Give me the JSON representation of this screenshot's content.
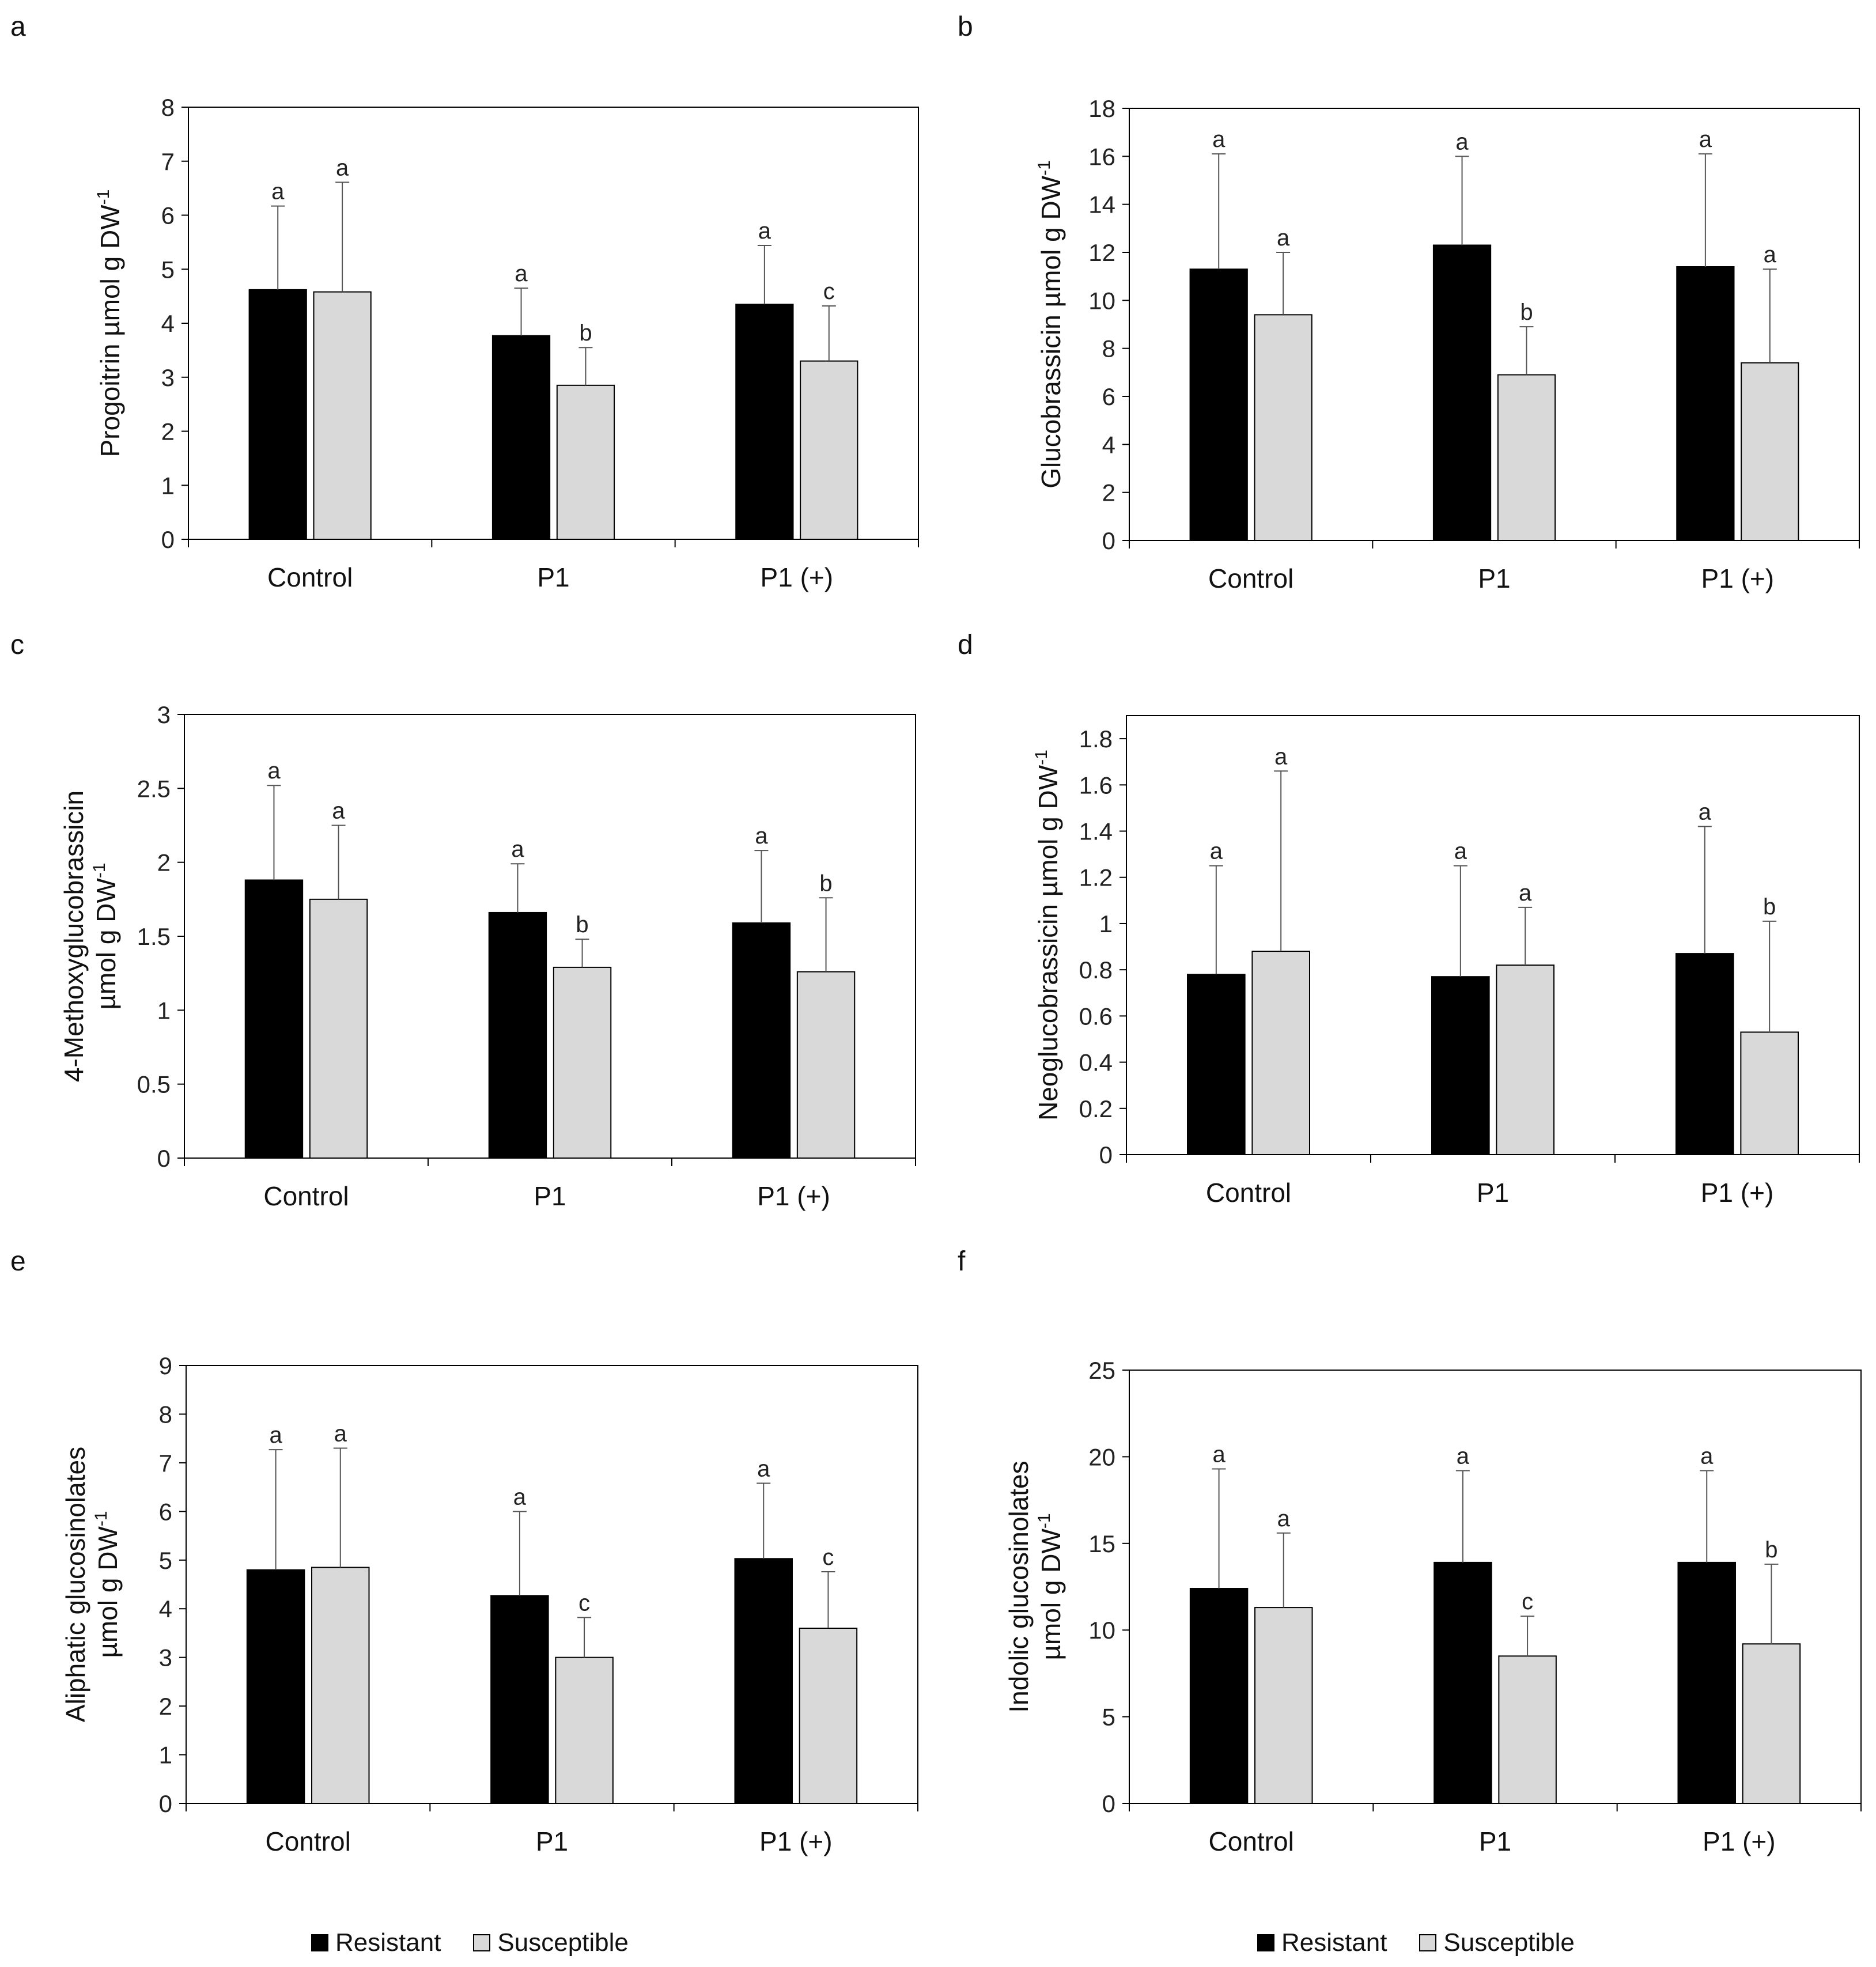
{
  "legend": {
    "resistant": "Resistant",
    "susceptible": "Susceptible"
  },
  "colors": {
    "resistant": "#000000",
    "susceptible": "#d9d9d9",
    "frame": "#000000",
    "errorbar": "#555555"
  },
  "chart_data": [
    {
      "panel_label": "a",
      "type": "bar",
      "ylabel": "Progoitrin µmol g DW",
      "ylabel_sup": "-1",
      "categories": [
        "Control",
        "P1",
        "P1 (+)"
      ],
      "ylim": [
        0,
        8
      ],
      "yticks": [
        "0",
        "1",
        "2",
        "3",
        "4",
        "5",
        "6",
        "7",
        "8"
      ],
      "series": [
        {
          "name": "Resistant",
          "values": [
            4.62,
            3.77,
            4.35
          ],
          "errors": [
            1.55,
            0.88,
            1.09
          ],
          "letters": [
            "a",
            "a",
            "a"
          ]
        },
        {
          "name": "Susceptible",
          "values": [
            4.58,
            2.85,
            3.3
          ],
          "errors": [
            2.03,
            0.7,
            1.02
          ],
          "letters": [
            "a",
            "b",
            "c"
          ]
        }
      ]
    },
    {
      "panel_label": "b",
      "type": "bar",
      "ylabel": "Glucobrassicin µmol g DW",
      "ylabel_sup": "-1",
      "categories": [
        "Control",
        "P1",
        "P1 (+)"
      ],
      "ylim": [
        0,
        18
      ],
      "yticks": [
        "0",
        "2",
        "4",
        "6",
        "8",
        "10",
        "12",
        "14",
        "16",
        "18"
      ],
      "series": [
        {
          "name": "Resistant",
          "values": [
            11.3,
            12.3,
            11.4
          ],
          "errors": [
            4.8,
            3.7,
            4.7
          ],
          "letters": [
            "a",
            "a",
            "a"
          ]
        },
        {
          "name": "Susceptible",
          "values": [
            9.4,
            6.9,
            7.4
          ],
          "errors": [
            2.6,
            2.0,
            3.9
          ],
          "letters": [
            "a",
            "b",
            "a"
          ]
        }
      ]
    },
    {
      "panel_label": "c",
      "type": "bar",
      "ylabel": "4-Methoxyglucobrassicin",
      "ylabel2": "µmol g DW",
      "ylabel_sup": "-1",
      "categories": [
        "Control",
        "P1",
        "P1 (+)"
      ],
      "ylim": [
        0,
        3
      ],
      "yticks": [
        "0",
        "0.5",
        "1",
        "1.5",
        "2",
        "2.5",
        "3"
      ],
      "series": [
        {
          "name": "Resistant",
          "values": [
            1.88,
            1.66,
            1.59
          ],
          "errors": [
            0.64,
            0.33,
            0.49
          ],
          "letters": [
            "a",
            "a",
            "a"
          ]
        },
        {
          "name": "Susceptible",
          "values": [
            1.75,
            1.29,
            1.26
          ],
          "errors": [
            0.5,
            0.19,
            0.5
          ],
          "letters": [
            "a",
            "b",
            "b"
          ]
        }
      ]
    },
    {
      "panel_label": "d",
      "type": "bar",
      "ylabel": "Neoglucobrassicin µmol g DW",
      "ylabel_sup": "-1",
      "categories": [
        "Control",
        "P1",
        "P1 (+)"
      ],
      "ylim": [
        0,
        1.9
      ],
      "yticks": [
        "0",
        "0.2",
        "0.4",
        "0.6",
        "0.8",
        "1",
        "1.2",
        "1.4",
        "1.6",
        "1.8"
      ],
      "series": [
        {
          "name": "Resistant",
          "values": [
            0.78,
            0.77,
            0.87
          ],
          "errors": [
            0.47,
            0.48,
            0.55
          ],
          "letters": [
            "a",
            "a",
            "a"
          ]
        },
        {
          "name": "Susceptible",
          "values": [
            0.88,
            0.82,
            0.53
          ],
          "errors": [
            0.78,
            0.25,
            0.48
          ],
          "letters": [
            "a",
            "a",
            "b"
          ]
        }
      ]
    },
    {
      "panel_label": "e",
      "type": "bar",
      "ylabel": "Aliphatic glucosinolates",
      "ylabel2": "µmol g DW",
      "ylabel_sup": "-1",
      "categories": [
        "Control",
        "P1",
        "P1 (+)"
      ],
      "ylim": [
        0,
        9
      ],
      "yticks": [
        "0",
        "1",
        "2",
        "3",
        "4",
        "5",
        "6",
        "7",
        "8",
        "9"
      ],
      "series": [
        {
          "name": "Resistant",
          "values": [
            4.8,
            4.27,
            5.03
          ],
          "errors": [
            2.47,
            1.73,
            1.55
          ],
          "letters": [
            "a",
            "a",
            "a"
          ]
        },
        {
          "name": "Susceptible",
          "values": [
            4.85,
            3.0,
            3.6
          ],
          "errors": [
            2.45,
            0.82,
            1.16
          ],
          "letters": [
            "a",
            "c",
            "c"
          ]
        }
      ]
    },
    {
      "panel_label": "f",
      "type": "bar",
      "ylabel": "Indolic glucosinolates",
      "ylabel2": "µmol g DW",
      "ylabel_sup": "-1",
      "categories": [
        "Control",
        "P1",
        "P1 (+)"
      ],
      "ylim": [
        0,
        25
      ],
      "yticks": [
        "0",
        "5",
        "10",
        "15",
        "20",
        "25"
      ],
      "series": [
        {
          "name": "Resistant",
          "values": [
            12.4,
            13.9,
            13.9
          ],
          "errors": [
            6.9,
            5.3,
            5.3
          ],
          "letters": [
            "a",
            "a",
            "a"
          ]
        },
        {
          "name": "Susceptible",
          "values": [
            11.3,
            8.5,
            9.2
          ],
          "errors": [
            4.3,
            2.3,
            4.6
          ],
          "letters": [
            "a",
            "c",
            "b"
          ]
        }
      ]
    }
  ]
}
